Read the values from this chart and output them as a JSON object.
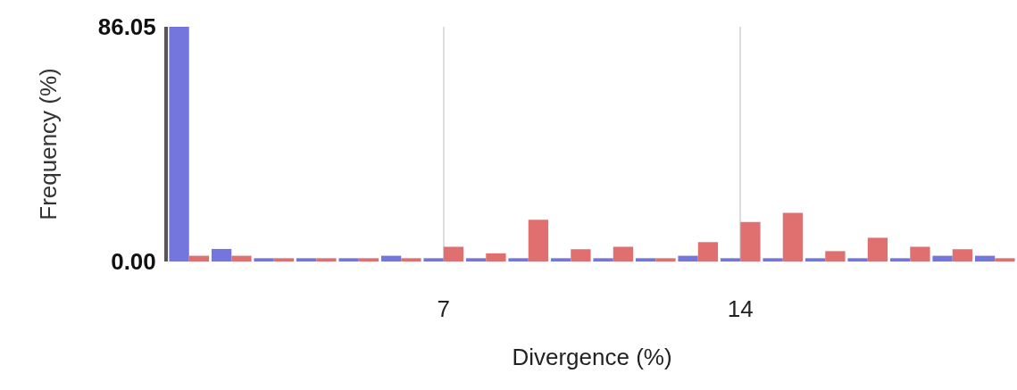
{
  "chart_data": {
    "type": "bar",
    "xlabel": "Divergence (%)",
    "ylabel": "Frequency (%)",
    "x": [
      1,
      2,
      3,
      4,
      5,
      6,
      7,
      8,
      9,
      10,
      11,
      12,
      13,
      14,
      15,
      16,
      17,
      18,
      19,
      20
    ],
    "series": [
      {
        "color": "#7475dd",
        "values": [
          86.05,
          4.6,
          1.2,
          1.2,
          1.2,
          2.1,
          1.2,
          1.2,
          1.2,
          1.2,
          1.2,
          1.2,
          2.1,
          1.2,
          1.2,
          1.2,
          1.2,
          1.2,
          2.1,
          2.1
        ]
      },
      {
        "color": "#e07070",
        "values": [
          2.1,
          2.1,
          1.2,
          1.2,
          1.2,
          1.2,
          5.4,
          3.0,
          15.3,
          4.5,
          5.4,
          1.2,
          7.1,
          14.5,
          17.8,
          3.8,
          8.7,
          5.4,
          4.5,
          1.2
        ]
      }
    ],
    "xlim": [
      0.5,
      20.5
    ],
    "xticks": [
      7,
      14
    ],
    "ylim": [
      0,
      86.05
    ],
    "yticks": [
      {
        "value": 0,
        "label": "0.00"
      },
      {
        "value": 86.05,
        "label": "86.05"
      }
    ],
    "grid": "x"
  }
}
